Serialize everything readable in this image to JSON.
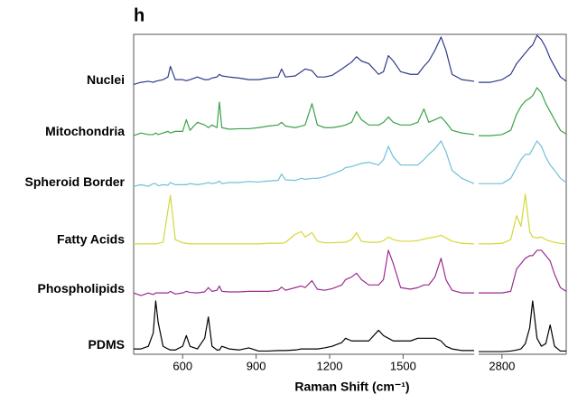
{
  "chart_data": {
    "type": "line",
    "title": "h",
    "x_label": "Raman Shift (cm⁻¹)",
    "xlim": [
      400,
      1790
    ],
    "x2lim": [
      2720,
      3020
    ],
    "xticks": [
      600,
      900,
      1200,
      1500
    ],
    "x2ticks": [
      2800
    ],
    "ylim": [
      0,
      60
    ],
    "x": [
      400,
      430,
      460,
      480,
      490,
      500,
      520,
      540,
      550,
      570,
      600,
      615,
      630,
      660,
      690,
      705,
      720,
      740,
      750,
      760,
      790,
      830,
      870,
      910,
      950,
      990,
      1004,
      1020,
      1060,
      1085,
      1100,
      1128,
      1150,
      1180,
      1210,
      1250,
      1265,
      1290,
      1310,
      1330,
      1360,
      1400,
      1420,
      1440,
      1460,
      1490,
      1530,
      1560,
      1585,
      1605,
      1630,
      1655,
      1675,
      1700,
      1740,
      1790,
      2720,
      2760,
      2800,
      2830,
      2850,
      2865,
      2880,
      2895,
      2905,
      2920,
      2935,
      2950,
      2965,
      2980,
      3000,
      3020
    ],
    "series": [
      {
        "name": "Nuclei",
        "color": "#2e3a8c",
        "values": [
          50.6,
          51,
          51.2,
          51,
          51.2,
          51.3,
          51.5,
          52,
          54,
          51.5,
          51.5,
          51.3,
          51.5,
          52,
          51.5,
          51.5,
          51.8,
          52,
          52.5,
          52.2,
          52,
          51.8,
          51.5,
          51.5,
          51.8,
          52,
          53.5,
          52,
          52.2,
          53,
          53.5,
          53.2,
          52,
          52,
          52.3,
          53.5,
          54,
          54.8,
          55.8,
          55,
          54.5,
          52.5,
          53,
          56,
          55,
          53,
          52.5,
          52.5,
          54,
          55,
          57,
          59.5,
          57,
          52.5,
          51.5,
          51.2,
          51,
          51,
          51.5,
          52.5,
          54.5,
          55.5,
          56.5,
          57.5,
          58,
          59.8,
          59,
          57.5,
          55.5,
          54,
          52,
          51.2
        ]
      },
      {
        "name": "Mitochondria",
        "color": "#3aa24a",
        "values": [
          41,
          41.5,
          41.2,
          41.2,
          41.5,
          41.2,
          41.5,
          41.8,
          41.5,
          41.8,
          41.8,
          44,
          42,
          43.5,
          43,
          42.5,
          43,
          42.5,
          47.3,
          42.5,
          42.2,
          42.3,
          42.3,
          42.5,
          42.8,
          43,
          43.5,
          42.8,
          42.5,
          42.8,
          43,
          47,
          43,
          42.5,
          42.5,
          42.8,
          43,
          43.5,
          45.5,
          44,
          43,
          43,
          43.5,
          44.5,
          43.5,
          43,
          43,
          43.5,
          46,
          43.5,
          44,
          44.5,
          43.5,
          42,
          41.5,
          41.2,
          41,
          41,
          41.2,
          42,
          45,
          46.5,
          47.5,
          48,
          48.5,
          50,
          49,
          47,
          45.5,
          44,
          42,
          41.3
        ]
      },
      {
        "name": "Spheroid Border",
        "color": "#6fc0d6",
        "values": [
          31.5,
          31.8,
          31.5,
          32,
          32,
          31.6,
          31.8,
          31.7,
          32.2,
          31.8,
          31.8,
          31.8,
          32,
          31.8,
          32,
          32.2,
          32,
          32.2,
          32.5,
          32,
          32.2,
          32.2,
          32.4,
          32.3,
          32.5,
          32.6,
          33.8,
          32.7,
          32.6,
          33,
          32.8,
          33,
          33,
          33.3,
          33.8,
          34.5,
          35,
          35.2,
          35.5,
          35.8,
          36,
          35.5,
          36.5,
          39,
          37,
          35.5,
          35.5,
          35.5,
          36.5,
          37.5,
          38.5,
          40,
          38,
          34.5,
          33,
          32,
          32,
          32,
          32,
          33,
          35,
          36.5,
          37.5,
          37.5,
          38.5,
          40,
          39,
          37,
          35.5,
          34.5,
          33,
          32.2
        ]
      },
      {
        "name": "Fatty Acids",
        "color": "#d4d83a",
        "values": [
          20.7,
          20.7,
          20.7,
          20.7,
          20.7,
          20.8,
          21,
          27,
          29.8,
          21.5,
          20.9,
          20.8,
          20.7,
          20.7,
          20.7,
          20.7,
          20.7,
          20.7,
          20.7,
          20.7,
          20.7,
          20.7,
          20.7,
          20.7,
          20.8,
          20.8,
          20.8,
          21,
          22.5,
          23,
          22,
          22.8,
          21.2,
          20.9,
          20.9,
          21,
          21,
          21.5,
          22.8,
          21.2,
          21,
          21,
          21.3,
          22,
          21.5,
          21.2,
          21.2,
          21.3,
          21.6,
          21.8,
          22,
          22.3,
          21.8,
          21.2,
          20.8,
          20.7,
          20.7,
          20.7,
          20.8,
          21.5,
          26,
          24,
          30,
          23,
          22,
          21.8,
          22,
          21.5,
          21.2,
          21,
          20.8,
          20.7
        ]
      },
      {
        "name": "Phospholipids",
        "color": "#9b2b8f",
        "values": [
          11.5,
          11,
          11.5,
          11.2,
          11.5,
          11.5,
          11.5,
          11.5,
          11.8,
          11.3,
          11.5,
          11.8,
          11.6,
          11.5,
          11.7,
          12.5,
          11.8,
          12,
          12.8,
          11.8,
          11.7,
          11.7,
          11.8,
          11.8,
          11.8,
          12,
          12.6,
          12,
          12.5,
          12.8,
          12.5,
          13.8,
          12.2,
          12,
          12.3,
          13,
          14,
          14.5,
          15.2,
          14,
          13,
          13,
          14,
          19.5,
          17,
          12.5,
          12.2,
          12.5,
          13,
          13,
          14.5,
          18,
          14,
          12,
          11.5,
          11.5,
          11.5,
          11.5,
          11.5,
          11.8,
          16,
          17,
          18,
          18.5,
          18.5,
          19.5,
          19.5,
          18.5,
          17.5,
          15,
          12.5,
          11.8
        ]
      },
      {
        "name": "PDMS",
        "color": "#000000",
        "values": [
          1,
          1,
          1.5,
          4,
          10,
          6,
          1.5,
          1,
          0.8,
          0.8,
          1.5,
          3.5,
          1.5,
          1,
          3,
          7,
          1.5,
          0.8,
          0.8,
          1.5,
          1,
          0.8,
          1.2,
          0.6,
          0.6,
          0.7,
          0.7,
          0.7,
          0.8,
          1,
          1,
          1,
          1,
          1.2,
          1.5,
          2.2,
          3,
          2.5,
          2.5,
          2.5,
          2.5,
          4.5,
          3.5,
          3,
          2.5,
          2.5,
          2.5,
          3,
          3,
          3,
          3,
          2.5,
          1.5,
          1,
          0.7,
          0.7,
          0.5,
          0.5,
          0.5,
          0.6,
          0.8,
          1,
          2,
          5,
          10,
          3,
          1.5,
          2,
          5.5,
          1.5,
          0.6,
          0.6
        ]
      }
    ]
  }
}
